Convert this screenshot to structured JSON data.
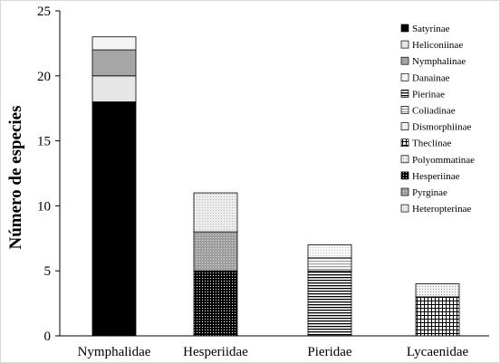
{
  "chart_data": {
    "type": "bar",
    "stacked": true,
    "title": "",
    "xlabel": "",
    "ylabel": "Número de especies",
    "ylim": [
      0,
      25
    ],
    "yticks": [
      0,
      5,
      10,
      15,
      20,
      25
    ],
    "grid": false,
    "legend_position": "right",
    "categories": [
      "Nymphalidae",
      "Hesperiidae",
      "Pieridae",
      "Lycaenidae"
    ],
    "series": [
      {
        "name": "Satyrinae",
        "pattern": "solid-black",
        "values": [
          18,
          0,
          0,
          0
        ]
      },
      {
        "name": "Heliconiinae",
        "pattern": "light-gray",
        "values": [
          2,
          0,
          0,
          0
        ]
      },
      {
        "name": "Nymphalinae",
        "pattern": "mid-gray",
        "values": [
          2,
          0,
          0,
          0
        ]
      },
      {
        "name": "Danainae",
        "pattern": "near-white",
        "values": [
          1,
          0,
          0,
          0
        ]
      },
      {
        "name": "Pierinae",
        "pattern": "horizontal-lines",
        "values": [
          0,
          0,
          5,
          0
        ]
      },
      {
        "name": "Coliadinae",
        "pattern": "gray-stripes",
        "values": [
          0,
          0,
          1,
          0
        ]
      },
      {
        "name": "Dismorphiinae",
        "pattern": "fine-dots",
        "values": [
          0,
          0,
          1,
          0
        ]
      },
      {
        "name": "Theclinae",
        "pattern": "grid",
        "values": [
          0,
          0,
          0,
          3
        ]
      },
      {
        "name": "Polyommatinae",
        "pattern": "light-dots",
        "values": [
          0,
          0,
          0,
          1
        ]
      },
      {
        "name": "Hesperiinae",
        "pattern": "dark-dots",
        "values": [
          0,
          5,
          0,
          0
        ]
      },
      {
        "name": "Pyrginae",
        "pattern": "gray-dots",
        "values": [
          0,
          3,
          0,
          0
        ]
      },
      {
        "name": "Heteropterinae",
        "pattern": "pale-dots",
        "values": [
          0,
          3,
          0,
          0
        ]
      }
    ]
  }
}
